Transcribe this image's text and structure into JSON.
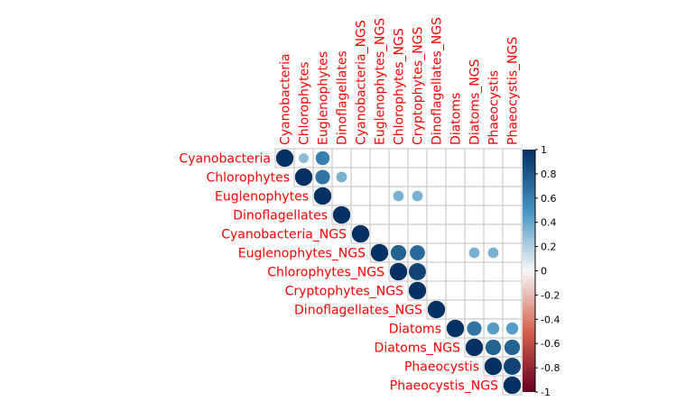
{
  "chart_data": {
    "type": "heatmap",
    "subtype": "correlation-plot-upper-triangle-circles",
    "variables": [
      "Cyanobacteria",
      "Chlorophytes",
      "Euglenophytes",
      "Dinoflagellates",
      "Cyanobacteria_NGS",
      "Euglenophytes_NGS",
      "Chlorophytes_NGS",
      "Cryptophytes_NGS",
      "Dinoflagellates_NGS",
      "Diatoms",
      "Diatoms_NGS",
      "Phaeocystis",
      "Phaeocystis_NGS"
    ],
    "column_labels": [
      "Cyanobacteria",
      "Chlorophytes",
      "Euglenophytes",
      "Dinoflagellates",
      "Cyanobacteria_NGS",
      "Euglenophytes_NGS",
      "Chlorophytes_NGS",
      "Cryptophytes_NGS",
      "Dinoflagellates_NGS",
      "Diatoms",
      "Diatoms_NGS",
      "Phaeocystis",
      "Phaeocystis_NGS"
    ],
    "cells": [
      {
        "row": 0,
        "col": 0,
        "value": 1.0
      },
      {
        "row": 0,
        "col": 1,
        "value": 0.3
      },
      {
        "row": 0,
        "col": 2,
        "value": 0.6
      },
      {
        "row": 1,
        "col": 1,
        "value": 1.0
      },
      {
        "row": 1,
        "col": 2,
        "value": 0.65
      },
      {
        "row": 1,
        "col": 3,
        "value": 0.35
      },
      {
        "row": 2,
        "col": 2,
        "value": 1.0
      },
      {
        "row": 2,
        "col": 6,
        "value": 0.35
      },
      {
        "row": 2,
        "col": 7,
        "value": 0.35
      },
      {
        "row": 3,
        "col": 3,
        "value": 1.0
      },
      {
        "row": 4,
        "col": 4,
        "value": 1.0
      },
      {
        "row": 5,
        "col": 5,
        "value": 1.0
      },
      {
        "row": 5,
        "col": 6,
        "value": 0.75
      },
      {
        "row": 5,
        "col": 7,
        "value": 0.7
      },
      {
        "row": 5,
        "col": 10,
        "value": 0.35
      },
      {
        "row": 5,
        "col": 11,
        "value": 0.35
      },
      {
        "row": 6,
        "col": 6,
        "value": 1.0
      },
      {
        "row": 6,
        "col": 7,
        "value": 0.9
      },
      {
        "row": 7,
        "col": 7,
        "value": 1.0
      },
      {
        "row": 8,
        "col": 8,
        "value": 1.0
      },
      {
        "row": 9,
        "col": 9,
        "value": 1.0
      },
      {
        "row": 9,
        "col": 10,
        "value": 0.65
      },
      {
        "row": 9,
        "col": 11,
        "value": 0.45
      },
      {
        "row": 9,
        "col": 12,
        "value": 0.45
      },
      {
        "row": 10,
        "col": 10,
        "value": 1.0
      },
      {
        "row": 10,
        "col": 11,
        "value": 0.75
      },
      {
        "row": 10,
        "col": 12,
        "value": 0.75
      },
      {
        "row": 11,
        "col": 11,
        "value": 1.0
      },
      {
        "row": 11,
        "col": 12,
        "value": 0.9
      },
      {
        "row": 12,
        "col": 12,
        "value": 1.0
      }
    ],
    "colorbar": {
      "ticks": [
        "1",
        "0.8",
        "0.6",
        "0.4",
        "0.2",
        "0",
        "-0.2",
        "-0.4",
        "-0.6",
        "-0.8",
        "-1"
      ],
      "range": [
        -1,
        1
      ]
    },
    "label_color": "#ff0000",
    "grid": true,
    "colors": {
      "strong_negative": "#67001f",
      "negative": "#d6604d",
      "neutral": "#f7f7f7",
      "positive": "#4393c3",
      "strong_positive": "#053061",
      "grid": "#bfbfbf"
    }
  }
}
